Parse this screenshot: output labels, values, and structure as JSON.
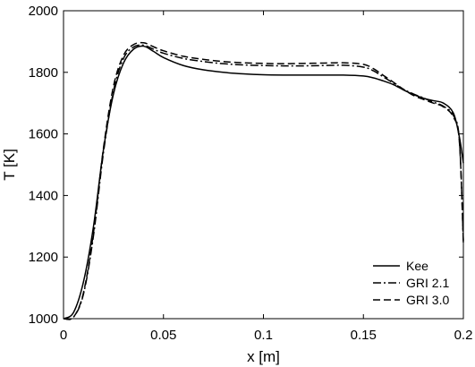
{
  "chart_data": {
    "type": "line",
    "xlabel": "x [m]",
    "ylabel": "T [K]",
    "xlim": [
      0,
      0.2
    ],
    "ylim": [
      1000,
      2000
    ],
    "xticks": [
      0,
      0.05,
      0.1,
      0.15,
      0.2
    ],
    "xtick_labels": [
      "0",
      "0.05",
      "0.1",
      "0.15",
      "0.2"
    ],
    "yticks": [
      1000,
      1200,
      1400,
      1600,
      1800,
      2000
    ],
    "ytick_labels": [
      "1000",
      "1200",
      "1400",
      "1600",
      "1800",
      "2000"
    ],
    "grid": false,
    "legend_position": "bottom-right",
    "series": [
      {
        "name": "Kee",
        "style": "solid",
        "x": [
          0,
          0.005,
          0.01,
          0.015,
          0.02,
          0.025,
          0.03,
          0.035,
          0.04,
          0.045,
          0.05,
          0.06,
          0.07,
          0.08,
          0.09,
          0.1,
          0.11,
          0.12,
          0.13,
          0.14,
          0.15,
          0.155,
          0.16,
          0.165,
          0.17,
          0.175,
          0.18,
          0.185,
          0.19,
          0.195,
          0.198,
          0.2
        ],
        "y": [
          1000,
          1020,
          1120,
          1300,
          1550,
          1730,
          1830,
          1875,
          1885,
          1868,
          1848,
          1822,
          1808,
          1800,
          1795,
          1792,
          1791,
          1791,
          1791,
          1791,
          1788,
          1782,
          1772,
          1760,
          1743,
          1728,
          1716,
          1708,
          1700,
          1668,
          1590,
          1505
        ]
      },
      {
        "name": "GRI 2.1",
        "style": "dashdot",
        "x": [
          0,
          0.005,
          0.01,
          0.015,
          0.02,
          0.025,
          0.03,
          0.035,
          0.04,
          0.045,
          0.05,
          0.06,
          0.07,
          0.08,
          0.09,
          0.1,
          0.11,
          0.12,
          0.13,
          0.14,
          0.15,
          0.155,
          0.16,
          0.165,
          0.17,
          0.175,
          0.18,
          0.185,
          0.19,
          0.195,
          0.198,
          0.2
        ],
        "y": [
          1000,
          1005,
          1080,
          1270,
          1540,
          1740,
          1845,
          1882,
          1888,
          1875,
          1862,
          1845,
          1835,
          1828,
          1824,
          1822,
          1821,
          1821,
          1822,
          1823,
          1817,
          1805,
          1785,
          1765,
          1745,
          1730,
          1717,
          1703,
          1690,
          1660,
          1580,
          1250
        ]
      },
      {
        "name": "GRI 3.0",
        "style": "dashed",
        "x": [
          0,
          0.005,
          0.01,
          0.015,
          0.02,
          0.025,
          0.03,
          0.035,
          0.04,
          0.045,
          0.05,
          0.06,
          0.07,
          0.08,
          0.09,
          0.1,
          0.11,
          0.12,
          0.13,
          0.14,
          0.15,
          0.155,
          0.16,
          0.165,
          0.17,
          0.175,
          0.18,
          0.185,
          0.19,
          0.195,
          0.198,
          0.2
        ],
        "y": [
          1000,
          1005,
          1085,
          1280,
          1555,
          1755,
          1855,
          1890,
          1896,
          1883,
          1870,
          1852,
          1842,
          1835,
          1831,
          1829,
          1828,
          1829,
          1830,
          1831,
          1826,
          1812,
          1790,
          1768,
          1745,
          1725,
          1712,
          1700,
          1688,
          1655,
          1575,
          1245
        ]
      }
    ]
  }
}
